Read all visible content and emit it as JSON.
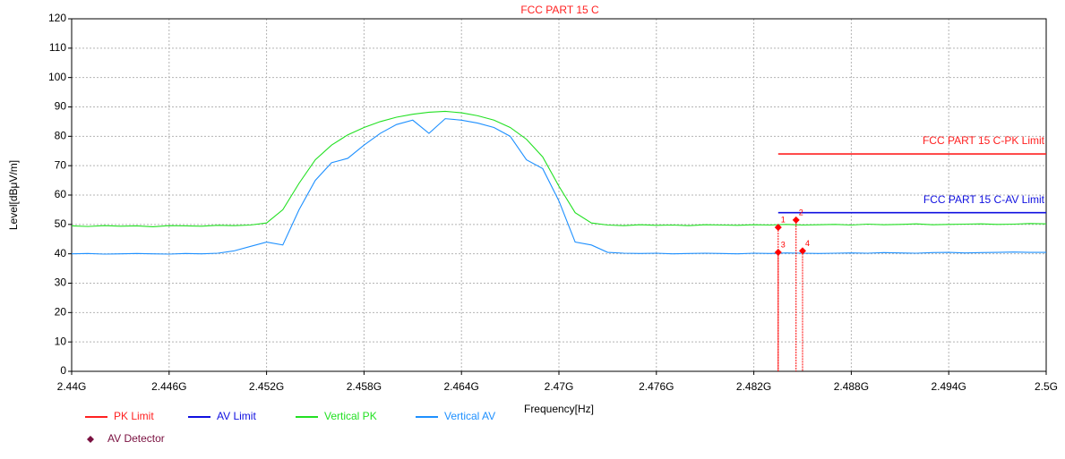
{
  "chart_data": {
    "type": "line",
    "title": "FCC PART 15 C",
    "x_label": "Frequency[Hz]",
    "y_label": "Level[dBμV/m]",
    "xlim": [
      2440000000,
      2500000000
    ],
    "xticks": [
      {
        "value": 2440000000,
        "label": "2.44G"
      },
      {
        "value": 2446000000,
        "label": "2.446G"
      },
      {
        "value": 2452000000,
        "label": "2.452G"
      },
      {
        "value": 2458000000,
        "label": "2.458G"
      },
      {
        "value": 2464000000,
        "label": "2.464G"
      },
      {
        "value": 2470000000,
        "label": "2.47G"
      },
      {
        "value": 2476000000,
        "label": "2.476G"
      },
      {
        "value": 2482000000,
        "label": "2.482G"
      },
      {
        "value": 2488000000,
        "label": "2.488G"
      },
      {
        "value": 2494000000,
        "label": "2.494G"
      },
      {
        "value": 2500000000,
        "label": "2.5G"
      }
    ],
    "ylim": [
      0,
      120
    ],
    "yticks": [
      0,
      10,
      20,
      30,
      40,
      50,
      60,
      70,
      80,
      90,
      100,
      110,
      120
    ],
    "grid": true,
    "x": [
      2440000000,
      2441000000,
      2442000000,
      2443000000,
      2444000000,
      2445000000,
      2446000000,
      2447000000,
      2448000000,
      2449000000,
      2450000000,
      2451000000,
      2452000000,
      2453000000,
      2454000000,
      2455000000,
      2456000000,
      2457000000,
      2458000000,
      2459000000,
      2460000000,
      2461000000,
      2462000000,
      2463000000,
      2464000000,
      2465000000,
      2466000000,
      2467000000,
      2468000000,
      2469000000,
      2470000000,
      2471000000,
      2472000000,
      2473000000,
      2474000000,
      2475000000,
      2476000000,
      2477000000,
      2478000000,
      2479000000,
      2480000000,
      2481000000,
      2482000000,
      2483000000,
      2484000000,
      2485000000,
      2486000000,
      2487000000,
      2488000000,
      2489000000,
      2490000000,
      2491000000,
      2492000000,
      2493000000,
      2494000000,
      2495000000,
      2496000000,
      2497000000,
      2498000000,
      2499000000,
      2500000000
    ],
    "series": [
      {
        "name": "PK Limit",
        "color": "#ff2020",
        "x": [
          2483500000,
          2500000000
        ],
        "values": [
          74,
          74
        ],
        "limit_label": "FCC PART 15 C-PK Limit"
      },
      {
        "name": "AV Limit",
        "color": "#1010e0",
        "x": [
          2483500000,
          2500000000
        ],
        "values": [
          54,
          54
        ],
        "limit_label": "FCC PART 15 C-AV Limit"
      },
      {
        "name": "Vertical PK",
        "color": "#22e022",
        "values": [
          49.5,
          49.3,
          49.6,
          49.4,
          49.5,
          49.2,
          49.6,
          49.5,
          49.4,
          49.7,
          49.6,
          49.8,
          50.5,
          55,
          64,
          72,
          77,
          80.5,
          83,
          85,
          86.5,
          87.5,
          88.2,
          88.5,
          88,
          87,
          85.5,
          83,
          79,
          73,
          63,
          54,
          50.5,
          49.8,
          49.6,
          49.9,
          49.7,
          49.8,
          49.6,
          49.9,
          49.8,
          49.7,
          49.9,
          49.8,
          50,
          49.8,
          49.9,
          50,
          49.8,
          50.1,
          49.9,
          50,
          50.2,
          49.9,
          50,
          50.1,
          50.2,
          50,
          50.1,
          50.3,
          50.2
        ]
      },
      {
        "name": "Vertical AV",
        "color": "#1e90ff",
        "values": [
          40,
          40.1,
          39.9,
          40,
          40.1,
          40,
          39.9,
          40.1,
          40,
          40.2,
          41,
          42.5,
          44,
          43,
          55,
          65,
          71,
          72.5,
          77,
          81,
          84,
          85.5,
          81,
          86,
          85.5,
          84.5,
          83,
          80,
          72,
          69,
          58,
          44,
          43,
          40.5,
          40.2,
          40.1,
          40.2,
          40,
          40.1,
          40.2,
          40.1,
          40,
          40.2,
          40.1,
          40.3,
          40.2,
          40.1,
          40.2,
          40.3,
          40.2,
          40.4,
          40.3,
          40.2,
          40.4,
          40.5,
          40.3,
          40.4,
          40.5,
          40.6,
          40.5,
          40.5
        ]
      },
      {
        "name": "AV Detector",
        "color": "#7a1040",
        "marker": "diamond",
        "marker_color": "#ff0000",
        "x": [
          2483500000,
          2484600000,
          2483500000,
          2485000000
        ],
        "values": [
          49,
          51.5,
          40.5,
          41
        ],
        "labels": [
          "1",
          "2",
          "3",
          "4"
        ]
      }
    ]
  }
}
